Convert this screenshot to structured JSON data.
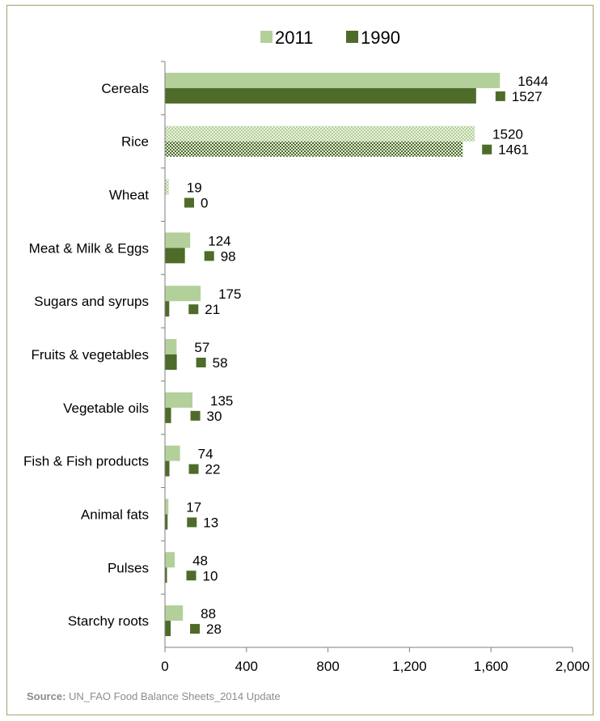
{
  "chart_data": {
    "type": "bar",
    "orientation": "horizontal",
    "categories": [
      "Cereals",
      "Rice",
      "Wheat",
      "Meat & Milk & Eggs",
      "Sugars and syrups",
      "Fruits & vegetables",
      "Vegetable oils",
      "Fish & Fish products",
      "Animal fats",
      "Pulses",
      "Starchy roots"
    ],
    "series": [
      {
        "name": "2011",
        "values": [
          1644,
          1520,
          19,
          124,
          175,
          57,
          135,
          74,
          17,
          48,
          88
        ],
        "color": "#b3d09a"
      },
      {
        "name": "1990",
        "values": [
          1527,
          1461,
          0,
          98,
          21,
          58,
          30,
          22,
          13,
          10,
          28
        ],
        "color": "#4e6b2a"
      }
    ],
    "patterned_categories": [
      "Rice",
      "Wheat"
    ],
    "xlim": [
      0,
      2000
    ],
    "xticks": [
      0,
      400,
      800,
      1200,
      1600,
      2000
    ],
    "xtick_labels": [
      "0",
      "400",
      "800",
      "1,200",
      "1,600",
      "2,000"
    ],
    "grid": false,
    "legend": "top-center"
  },
  "source": {
    "label": "Source:",
    "text": "UN_FAO Food Balance Sheets_2014 Update"
  },
  "colors": {
    "frame_border": "#a3a36b",
    "axis": "#7f7f7f",
    "text": "#000000",
    "source_text": "#8c8c8c"
  }
}
